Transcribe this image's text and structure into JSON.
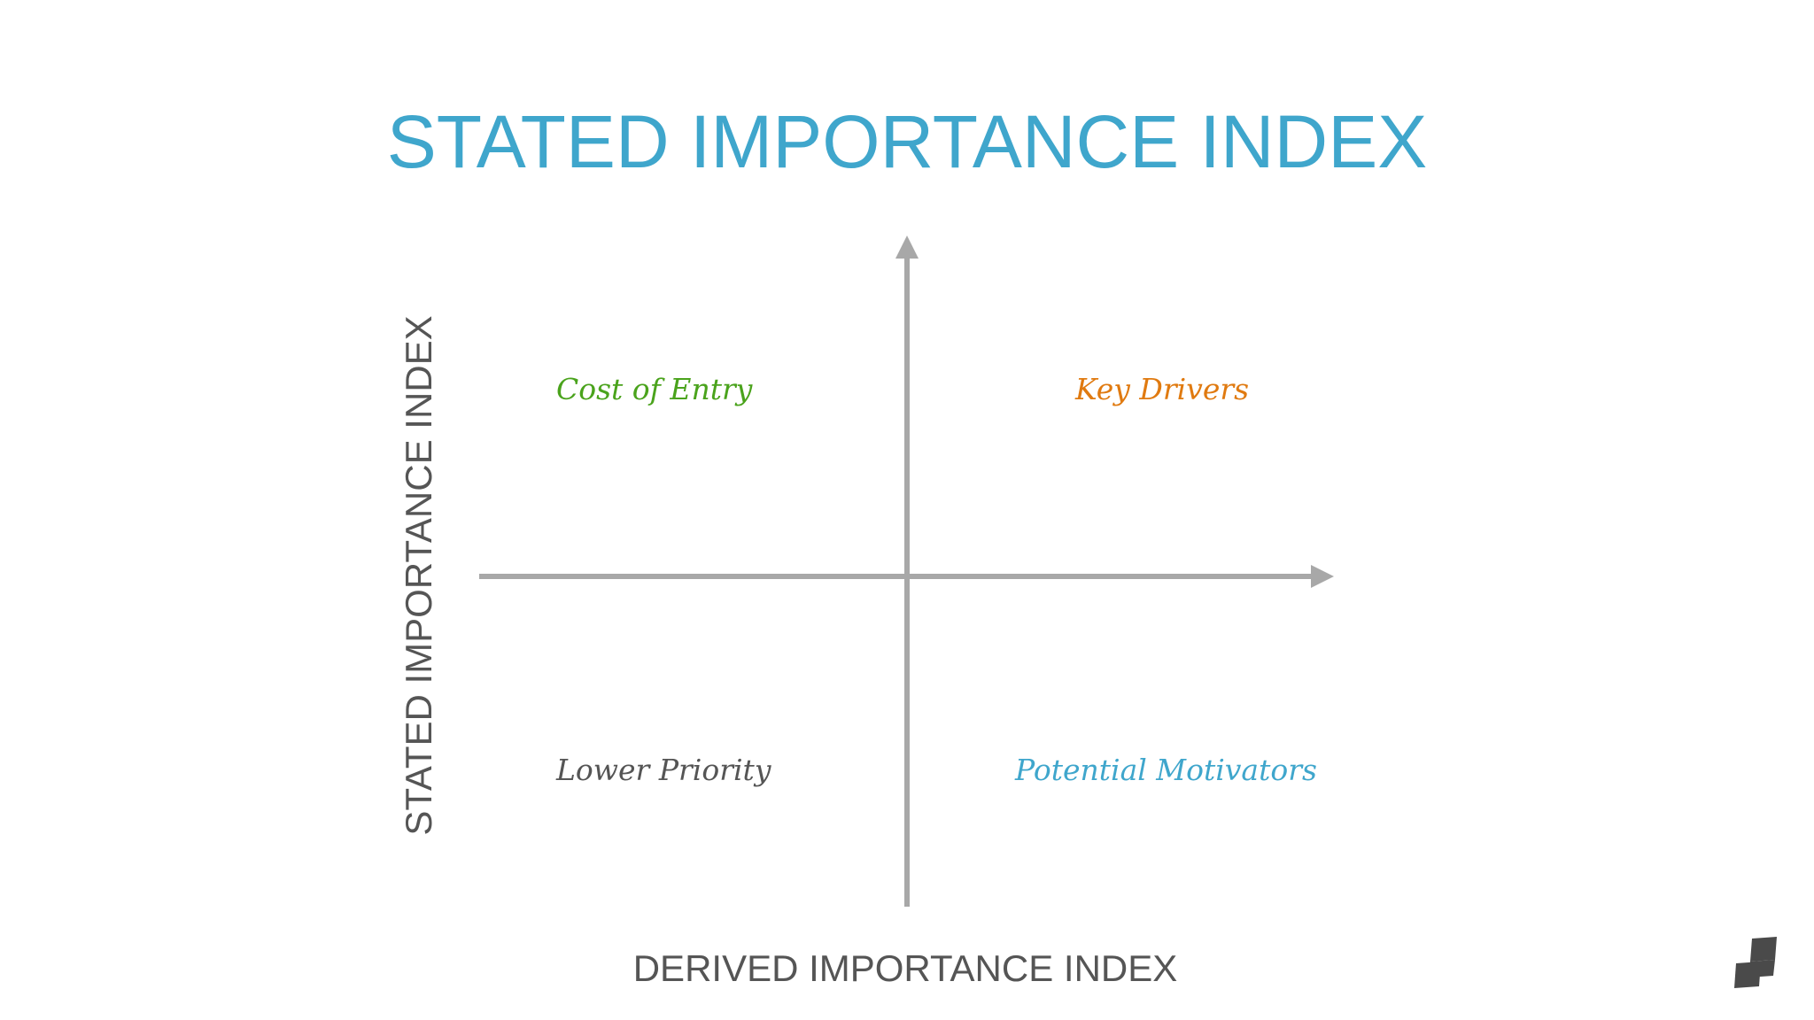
{
  "title": "STATED IMPORTANCE INDEX",
  "y_axis_label": "STATED IMPORTANCE INDEX",
  "x_axis_label": "DERIVED IMPORTANCE INDEX",
  "quadrants": {
    "top_left": {
      "label": "Cost of Entry",
      "color": "#4aa31c"
    },
    "top_right": {
      "label": "Key Drivers",
      "color": "#e07a10"
    },
    "bottom_left": {
      "label": "Lower Priority",
      "color": "#555555"
    },
    "bottom_right": {
      "label": "Potential Motivators",
      "color": "#3fa6cc"
    }
  },
  "colors": {
    "title": "#3fa6cc",
    "axis": "#a8a8a8",
    "axis_label": "#555555",
    "logo": "#4a4a4a"
  },
  "logo_icon": "brand-logo-icon"
}
